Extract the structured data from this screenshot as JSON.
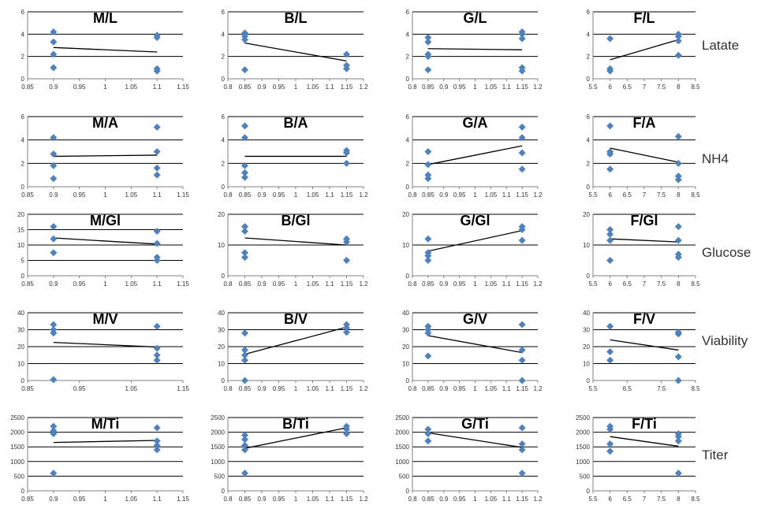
{
  "colors": {
    "point": "#4f81bd",
    "trend": "#000000",
    "grid": "#000000",
    "axis": "#808080",
    "text": "#333333"
  },
  "row_labels": [
    "Latate",
    "NH4",
    "Glucose",
    "Viability",
    "Titer"
  ],
  "x_axes": {
    "m": {
      "min": 0.85,
      "max": 1.15,
      "ticks": [
        "0.85",
        "0.9",
        "0.95",
        "1",
        "1.05",
        "1.1",
        "1.15"
      ]
    },
    "b": {
      "min": 0.8,
      "max": 1.2,
      "ticks": [
        "0.8",
        "0.85",
        "0.9",
        "0.95",
        "1",
        "1.05",
        "1.1",
        "1.15",
        "1.2"
      ]
    },
    "f": {
      "min": 5.5,
      "max": 8.5,
      "ticks": [
        "5.5",
        "6",
        "6.5",
        "7",
        "7.5",
        "8",
        "8.5"
      ]
    },
    "mv": {
      "min": 0.85,
      "max": 1.15,
      "ticks": [
        "0.85",
        "0.95",
        "1.05",
        "1.15"
      ]
    },
    "fv": {
      "min": 5.5,
      "max": 8.5,
      "ticks": [
        "5.5",
        "6.5",
        "7.5",
        "8.5"
      ]
    }
  },
  "y_axes": {
    "r0": {
      "min": 0,
      "max": 6,
      "ticks": [
        "0",
        "2",
        "4",
        "6"
      ]
    },
    "r2": {
      "min": 0,
      "max": 20,
      "ticks": [
        "0",
        "5",
        "10",
        "15",
        "20"
      ]
    },
    "r2b": {
      "min": 0,
      "max": 20,
      "ticks": [
        "0",
        "10",
        "20"
      ]
    },
    "r3": {
      "min": 0,
      "max": 40,
      "ticks": [
        "0",
        "10",
        "20",
        "30",
        "40"
      ]
    },
    "r4": {
      "min": 0,
      "max": 2500,
      "ticks": [
        "0",
        "500",
        "1000",
        "1500",
        "2000",
        "2500"
      ]
    }
  },
  "chart_data": [
    {
      "type": "scatter",
      "title": "M/L",
      "xaxis": "m",
      "yaxis": "r0",
      "ylim": [
        0,
        6
      ],
      "points": [
        [
          0.9,
          1.0
        ],
        [
          0.9,
          2.2
        ],
        [
          0.9,
          3.3
        ],
        [
          0.9,
          4.2
        ],
        [
          1.1,
          0.7
        ],
        [
          1.1,
          0.9
        ],
        [
          1.1,
          3.7
        ],
        [
          1.1,
          3.9
        ]
      ],
      "trend": [
        [
          0.9,
          2.8
        ],
        [
          1.1,
          2.4
        ]
      ]
    },
    {
      "type": "scatter",
      "title": "B/L",
      "xaxis": "b",
      "yaxis": "r0",
      "ylim": [
        0,
        6
      ],
      "points": [
        [
          0.85,
          0.8
        ],
        [
          0.85,
          3.5
        ],
        [
          0.85,
          3.8
        ],
        [
          0.85,
          4.1
        ],
        [
          1.15,
          0.9
        ],
        [
          1.15,
          1.2
        ],
        [
          1.15,
          2.2
        ]
      ],
      "trend": [
        [
          0.85,
          3.2
        ],
        [
          1.15,
          1.6
        ]
      ]
    },
    {
      "type": "scatter",
      "title": "G/L",
      "xaxis": "b",
      "yaxis": "r0",
      "ylim": [
        0,
        6
      ],
      "points": [
        [
          0.85,
          0.8
        ],
        [
          0.85,
          2.0
        ],
        [
          0.85,
          2.2
        ],
        [
          0.85,
          3.3
        ],
        [
          0.85,
          3.7
        ],
        [
          1.15,
          0.7
        ],
        [
          1.15,
          1.0
        ],
        [
          1.15,
          3.6
        ],
        [
          1.15,
          4.0
        ],
        [
          1.15,
          4.2
        ]
      ],
      "trend": [
        [
          0.85,
          2.7
        ],
        [
          1.15,
          2.6
        ]
      ]
    },
    {
      "type": "scatter",
      "title": "F/L",
      "xaxis": "f",
      "yaxis": "r0",
      "ylim": [
        0,
        6
      ],
      "points": [
        [
          6,
          0.7
        ],
        [
          6,
          0.9
        ],
        [
          6,
          3.6
        ],
        [
          8,
          2.1
        ],
        [
          8,
          3.4
        ],
        [
          8,
          3.8
        ],
        [
          8,
          4.0
        ]
      ],
      "trend": [
        [
          6,
          1.7
        ],
        [
          8,
          3.5
        ]
      ]
    },
    {
      "type": "scatter",
      "title": "M/A",
      "xaxis": "m",
      "yaxis": "r0",
      "ylim": [
        0,
        6
      ],
      "points": [
        [
          0.9,
          0.7
        ],
        [
          0.9,
          1.8
        ],
        [
          0.9,
          2.8
        ],
        [
          0.9,
          4.2
        ],
        [
          1.1,
          1.0
        ],
        [
          1.1,
          1.6
        ],
        [
          1.1,
          3.0
        ],
        [
          1.1,
          5.1
        ]
      ],
      "trend": [
        [
          0.9,
          2.6
        ],
        [
          1.1,
          2.7
        ]
      ]
    },
    {
      "type": "scatter",
      "title": "B/A",
      "xaxis": "b",
      "yaxis": "r0",
      "ylim": [
        0,
        6
      ],
      "points": [
        [
          0.85,
          0.8
        ],
        [
          0.85,
          1.2
        ],
        [
          0.85,
          1.8
        ],
        [
          0.85,
          4.2
        ],
        [
          0.85,
          5.2
        ],
        [
          1.15,
          2.0
        ],
        [
          1.15,
          2.9
        ],
        [
          1.15,
          3.1
        ]
      ],
      "trend": [
        [
          0.85,
          2.6
        ],
        [
          1.15,
          2.6
        ]
      ]
    },
    {
      "type": "scatter",
      "title": "G/A",
      "xaxis": "b",
      "yaxis": "r0",
      "ylim": [
        0,
        6
      ],
      "points": [
        [
          0.85,
          0.7
        ],
        [
          0.85,
          1.0
        ],
        [
          0.85,
          1.9
        ],
        [
          0.85,
          3.0
        ],
        [
          1.15,
          1.5
        ],
        [
          1.15,
          2.9
        ],
        [
          1.15,
          4.2
        ],
        [
          1.15,
          5.1
        ]
      ],
      "trend": [
        [
          0.85,
          1.9
        ],
        [
          1.15,
          3.5
        ]
      ]
    },
    {
      "type": "scatter",
      "title": "F/A",
      "xaxis": "f",
      "yaxis": "r0",
      "ylim": [
        0,
        6
      ],
      "points": [
        [
          6,
          1.5
        ],
        [
          6,
          2.8
        ],
        [
          6,
          3.0
        ],
        [
          6,
          5.2
        ],
        [
          8,
          0.6
        ],
        [
          8,
          0.9
        ],
        [
          8,
          2.0
        ],
        [
          8,
          4.3
        ]
      ],
      "trend": [
        [
          6,
          3.3
        ],
        [
          8,
          2.1
        ]
      ]
    },
    {
      "type": "scatter",
      "title": "M/Gl",
      "xaxis": "m",
      "yaxis": "r2",
      "ylim": [
        0,
        20
      ],
      "points": [
        [
          0.9,
          7.5
        ],
        [
          0.9,
          12.0
        ],
        [
          0.9,
          16.0
        ],
        [
          1.1,
          5.0
        ],
        [
          1.1,
          6.0
        ],
        [
          1.1,
          10.5
        ],
        [
          1.1,
          14.5
        ]
      ],
      "trend": [
        [
          0.9,
          12.3
        ],
        [
          1.1,
          10.3
        ]
      ]
    },
    {
      "type": "scatter",
      "title": "B/Gl",
      "xaxis": "b",
      "yaxis": "r2b",
      "ylim": [
        0,
        20
      ],
      "points": [
        [
          0.85,
          6.0
        ],
        [
          0.85,
          7.5
        ],
        [
          0.85,
          14.5
        ],
        [
          0.85,
          16.0
        ],
        [
          1.15,
          5.0
        ],
        [
          1.15,
          11.0
        ],
        [
          1.15,
          12.0
        ]
      ],
      "trend": [
        [
          0.85,
          12.3
        ],
        [
          1.15,
          10.0
        ]
      ]
    },
    {
      "type": "scatter",
      "title": "G/Gl",
      "xaxis": "b",
      "yaxis": "r2b",
      "ylim": [
        0,
        20
      ],
      "points": [
        [
          0.85,
          5.0
        ],
        [
          0.85,
          6.5
        ],
        [
          0.85,
          7.5
        ],
        [
          0.85,
          12.0
        ],
        [
          1.15,
          11.5
        ],
        [
          1.15,
          15.0
        ],
        [
          1.15,
          16.0
        ]
      ],
      "trend": [
        [
          0.85,
          8.0
        ],
        [
          1.15,
          14.7
        ]
      ]
    },
    {
      "type": "scatter",
      "title": "F/Gl",
      "xaxis": "f",
      "yaxis": "r2b",
      "ylim": [
        0,
        20
      ],
      "points": [
        [
          6,
          5.0
        ],
        [
          6,
          11.5
        ],
        [
          6,
          13.5
        ],
        [
          6,
          15.0
        ],
        [
          8,
          6.0
        ],
        [
          8,
          7.0
        ],
        [
          8,
          11.5
        ],
        [
          8,
          16.0
        ]
      ],
      "trend": [
        [
          6,
          12.0
        ],
        [
          8,
          11.0
        ]
      ]
    },
    {
      "type": "scatter",
      "title": "M/V",
      "xaxis": "mv",
      "yaxis": "r3",
      "ylim": [
        0,
        40
      ],
      "points": [
        [
          0.9,
          0.5
        ],
        [
          0.9,
          28.0
        ],
        [
          0.9,
          30.0
        ],
        [
          0.9,
          33.0
        ],
        [
          1.1,
          12.0
        ],
        [
          1.1,
          15.0
        ],
        [
          1.1,
          19.0
        ],
        [
          1.1,
          32.0
        ]
      ],
      "trend": [
        [
          0.9,
          22.5
        ],
        [
          1.1,
          19.8
        ]
      ]
    },
    {
      "type": "scatter",
      "title": "B/V",
      "xaxis": "b",
      "yaxis": "r3",
      "ylim": [
        0,
        40
      ],
      "points": [
        [
          0.85,
          0.0
        ],
        [
          0.85,
          12.0
        ],
        [
          0.85,
          15.0
        ],
        [
          0.85,
          18.0
        ],
        [
          0.85,
          28.0
        ],
        [
          1.15,
          28.5
        ],
        [
          1.15,
          31.0
        ],
        [
          1.15,
          33.0
        ]
      ],
      "trend": [
        [
          0.85,
          15.5
        ],
        [
          1.15,
          31.5
        ]
      ]
    },
    {
      "type": "scatter",
      "title": "G/V",
      "xaxis": "b",
      "yaxis": "r3",
      "ylim": [
        0,
        40
      ],
      "points": [
        [
          0.85,
          14.5
        ],
        [
          0.85,
          28.0
        ],
        [
          0.85,
          30.0
        ],
        [
          0.85,
          32.0
        ],
        [
          1.15,
          0.0
        ],
        [
          1.15,
          12.0
        ],
        [
          1.15,
          18.0
        ],
        [
          1.15,
          33.0
        ]
      ],
      "trend": [
        [
          0.85,
          26.5
        ],
        [
          1.15,
          16.5
        ]
      ]
    },
    {
      "type": "scatter",
      "title": "F/V",
      "xaxis": "fv",
      "yaxis": "r3",
      "ylim": [
        0,
        40
      ],
      "points": [
        [
          6,
          12.0
        ],
        [
          6,
          17.0
        ],
        [
          6,
          32.0
        ],
        [
          8,
          0.0
        ],
        [
          8,
          14.0
        ],
        [
          8,
          27.5
        ],
        [
          8,
          28.5
        ]
      ],
      "trend": [
        [
          6,
          24.0
        ],
        [
          8,
          18.0
        ]
      ]
    },
    {
      "type": "scatter",
      "title": "M/Ti",
      "xaxis": "m",
      "yaxis": "r4",
      "ylim": [
        0,
        2500
      ],
      "points": [
        [
          0.9,
          600
        ],
        [
          0.9,
          1950
        ],
        [
          0.9,
          2050
        ],
        [
          0.9,
          2200
        ],
        [
          1.1,
          1400
        ],
        [
          1.1,
          1550
        ],
        [
          1.1,
          1700
        ],
        [
          1.1,
          2150
        ]
      ],
      "trend": [
        [
          0.9,
          1650
        ],
        [
          1.1,
          1720
        ]
      ]
    },
    {
      "type": "scatter",
      "title": "B/Ti",
      "xaxis": "b",
      "yaxis": "r4",
      "ylim": [
        0,
        2500
      ],
      "points": [
        [
          0.85,
          600
        ],
        [
          0.85,
          1400
        ],
        [
          0.85,
          1550
        ],
        [
          0.85,
          1750
        ],
        [
          0.85,
          1900
        ],
        [
          1.15,
          1950
        ],
        [
          1.15,
          2100
        ],
        [
          1.15,
          2200
        ]
      ],
      "trend": [
        [
          0.85,
          1450
        ],
        [
          1.15,
          2150
        ]
      ]
    },
    {
      "type": "scatter",
      "title": "G/Ti",
      "xaxis": "b",
      "yaxis": "r4",
      "ylim": [
        0,
        2500
      ],
      "points": [
        [
          0.85,
          1700
        ],
        [
          0.85,
          1950
        ],
        [
          0.85,
          2100
        ],
        [
          1.15,
          600
        ],
        [
          1.15,
          1400
        ],
        [
          1.15,
          1600
        ],
        [
          1.15,
          2150
        ]
      ],
      "trend": [
        [
          0.85,
          1980
        ],
        [
          1.15,
          1480
        ]
      ]
    },
    {
      "type": "scatter",
      "title": "F/Ti",
      "xaxis": "f",
      "yaxis": "r4",
      "ylim": [
        0,
        2500
      ],
      "points": [
        [
          6,
          1350
        ],
        [
          6,
          1600
        ],
        [
          6,
          2100
        ],
        [
          6,
          2200
        ],
        [
          8,
          600
        ],
        [
          8,
          1700
        ],
        [
          8,
          1850
        ],
        [
          8,
          1950
        ]
      ],
      "trend": [
        [
          6,
          1850
        ],
        [
          8,
          1520
        ]
      ]
    }
  ]
}
